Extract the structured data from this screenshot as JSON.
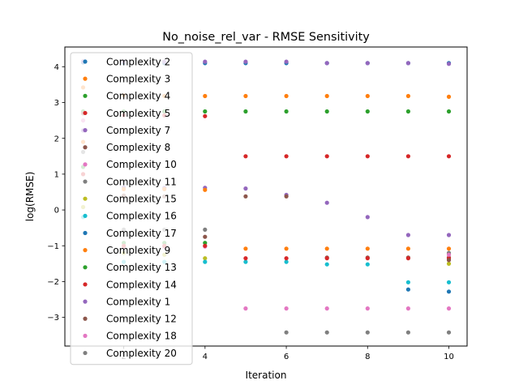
{
  "chart_data": {
    "type": "scatter",
    "title": "No_noise_rel_var - RMSE Sensitivity",
    "xlabel": "Iteration",
    "ylabel": "log(RMSE)",
    "xlim": [
      0.55,
      10.45
    ],
    "ylim": [
      -3.8,
      4.55
    ],
    "xticks": [
      2,
      4,
      6,
      8,
      10
    ],
    "yticks": [
      -3,
      -2,
      -1,
      0,
      1,
      2,
      3,
      4
    ],
    "xtick_labels": [
      "2",
      "4",
      "6",
      "8",
      "10"
    ],
    "ytick_labels": [
      "−3",
      "−2",
      "−1",
      "0",
      "1",
      "2",
      "3",
      "4"
    ],
    "grid": false,
    "legend": "upper-left",
    "series": [
      {
        "name": "Complexity 2",
        "color": "#1f77b4",
        "x": [
          1,
          2,
          3,
          4,
          5,
          6,
          7,
          8,
          9,
          10
        ],
        "y": [
          4.12,
          4.1,
          4.1,
          4.1,
          4.1,
          4.1,
          4.1,
          4.1,
          4.1,
          4.1
        ]
      },
      {
        "name": "Complexity 3",
        "color": "#ff7f0e",
        "x": [
          1,
          2,
          3,
          4,
          5,
          6,
          7,
          8,
          9,
          10
        ],
        "y": [
          3.42,
          3.2,
          3.18,
          3.18,
          3.18,
          3.18,
          3.18,
          3.18,
          3.18,
          3.16
        ]
      },
      {
        "name": "Complexity 4",
        "color": "#2ca02c",
        "x": [
          1,
          2,
          3,
          4,
          5,
          6,
          7,
          8,
          9,
          10
        ],
        "y": [
          2.75,
          2.75,
          2.75,
          2.75,
          2.75,
          2.75,
          2.75,
          2.75,
          2.75,
          2.75
        ]
      },
      {
        "name": "Complexity 5",
        "color": "#d62728",
        "x": [
          1,
          2,
          3,
          4,
          5,
          6,
          7,
          8,
          9,
          10
        ],
        "y": [
          2.7,
          2.65,
          2.64,
          2.62,
          1.5,
          1.5,
          1.5,
          1.5,
          1.5,
          1.5
        ]
      },
      {
        "name": "Complexity 7",
        "color": "#9467bd",
        "x": [
          1,
          2,
          3,
          4,
          5,
          6,
          7,
          8,
          9,
          10
        ],
        "y": [
          2.22,
          0.63,
          0.62,
          0.62,
          0.6,
          0.42,
          0.2,
          -0.2,
          -0.7,
          -0.7
        ]
      },
      {
        "name": "Complexity 8",
        "color": "#8c564b",
        "x": [
          1,
          2,
          3,
          4,
          5,
          6,
          7,
          8,
          9,
          10
        ],
        "y": [
          2.7,
          0.4,
          0.38,
          -0.75,
          0.38,
          0.38,
          -1.33,
          -1.33,
          -1.33,
          -1.33
        ]
      },
      {
        "name": "Complexity 10",
        "color": "#e377c2",
        "x": [
          1,
          2,
          3,
          4,
          5,
          6,
          7,
          8,
          9,
          10
        ],
        "y": [
          2.5,
          -1.02,
          -1.03,
          -1.02,
          -2.75,
          -2.75,
          -2.75,
          -2.75,
          -2.75,
          -2.75
        ]
      },
      {
        "name": "Complexity 11",
        "color": "#7f7f7f",
        "x": [
          1,
          2,
          3,
          4,
          10
        ],
        "y": [
          1.62,
          -0.55,
          -0.55,
          -0.55,
          -1.2
        ]
      },
      {
        "name": "Complexity 15",
        "color": "#bcbd22",
        "x": [
          1,
          2,
          3,
          4,
          10
        ],
        "y": [
          0.08,
          -1.2,
          -1.25,
          -1.35,
          -1.5
        ]
      },
      {
        "name": "Complexity 16",
        "color": "#17becf",
        "x": [
          1,
          2,
          3,
          4,
          5,
          6,
          7,
          8,
          9,
          10
        ],
        "y": [
          -0.2,
          -1.45,
          -1.45,
          -1.45,
          -1.45,
          -1.45,
          -1.52,
          -1.52,
          -2.02,
          -2.02
        ]
      },
      {
        "name": "Complexity 17",
        "color": "#1f77b4",
        "x": [
          9,
          10
        ],
        "y": [
          -2.22,
          -2.28
        ]
      },
      {
        "name": "Complexity 9",
        "color": "#ff7f0e",
        "x": [
          1,
          2,
          3,
          4,
          5,
          6,
          7,
          8,
          9,
          10
        ],
        "y": [
          1.9,
          0.58,
          0.58,
          0.56,
          -1.08,
          -1.08,
          -1.08,
          -1.08,
          -1.08,
          -1.08
        ]
      },
      {
        "name": "Complexity 13",
        "color": "#2ca02c",
        "x": [
          1,
          2,
          3,
          4
        ],
        "y": [
          1.2,
          -0.92,
          -0.92,
          -0.92
        ]
      },
      {
        "name": "Complexity 14",
        "color": "#d62728",
        "x": [
          1,
          2,
          3,
          4,
          5,
          6,
          7,
          8,
          9,
          10
        ],
        "y": [
          1.0,
          -1.0,
          -1.0,
          -1.0,
          -1.35,
          -1.35,
          -1.35,
          -1.35,
          -1.35,
          -1.35
        ]
      },
      {
        "name": "Complexity 1",
        "color": "#9467bd",
        "x": [
          1,
          2,
          3,
          4,
          5,
          6,
          7,
          8,
          9,
          10
        ],
        "y": [
          4.15,
          4.14,
          4.14,
          4.14,
          4.14,
          4.14,
          4.1,
          4.1,
          4.1,
          4.08
        ]
      },
      {
        "name": "Complexity 12",
        "color": "#8c564b",
        "x": [
          10
        ],
        "y": [
          -1.4
        ]
      },
      {
        "name": "Complexity 18",
        "color": "#e377c2",
        "x": [
          10
        ],
        "y": [
          -1.25
        ]
      },
      {
        "name": "Complexity 20",
        "color": "#7f7f7f",
        "x": [
          6,
          7,
          8,
          9,
          10
        ],
        "y": [
          -3.42,
          -3.42,
          -3.42,
          -3.42,
          -3.42
        ]
      }
    ]
  }
}
